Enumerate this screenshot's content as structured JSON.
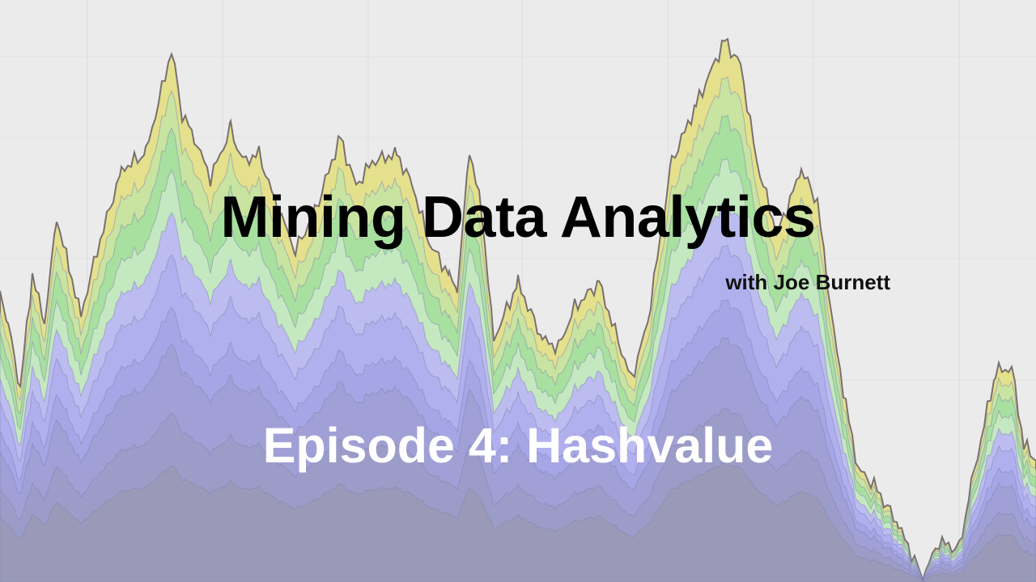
{
  "slide": {
    "title": "Mining Data Analytics",
    "subtitle": "with Joe Burnett",
    "episode": "Episode 4: Hashvalue"
  },
  "colors": {
    "background": "#ebebeb",
    "outline": "#7a7070",
    "layers": [
      "#9a9ab8",
      "#9c9cc8",
      "#a0a0d6",
      "#a6a6e6",
      "#b0b0ee",
      "#bcbcf0",
      "#c4e8c0",
      "#a8e0a0",
      "#c8e4a0",
      "#e4e08c"
    ]
  }
}
